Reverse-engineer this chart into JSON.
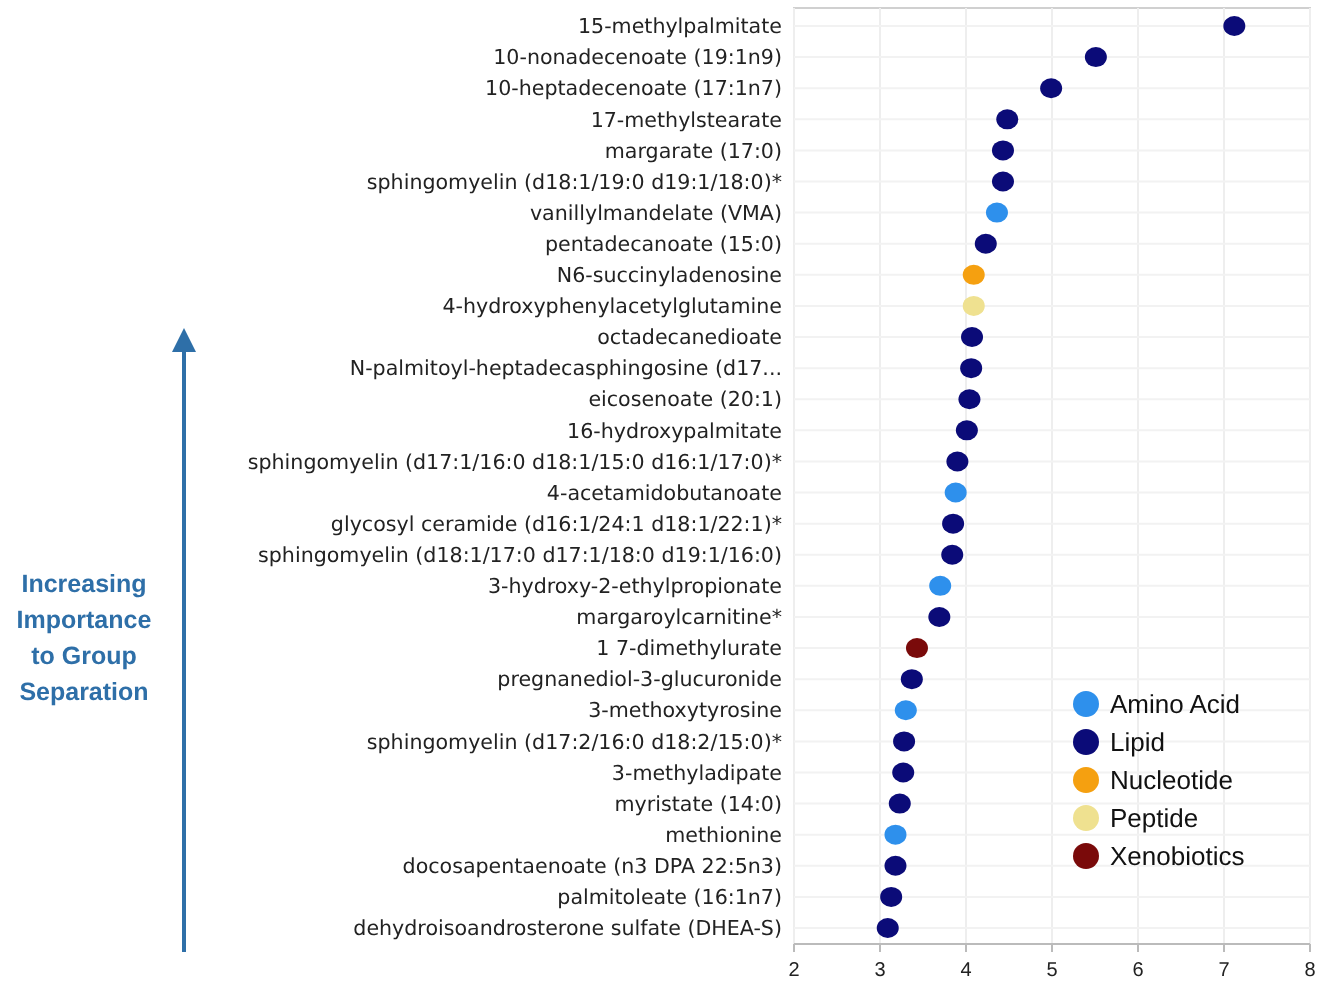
{
  "chart_data": {
    "type": "scatter",
    "orientation": "horizontal",
    "categories": [
      "15-methylpalmitate",
      "10-nonadecenoate (19:1n9)",
      "10-heptadecenoate (17:1n7)",
      "17-methylstearate",
      "margarate (17:0)",
      "sphingomyelin (d18:1/19:0 d19:1/18:0)*",
      "vanillylmandelate (VMA)",
      "pentadecanoate (15:0)",
      "N6-succinyladenosine",
      "4-hydroxyphenylacetylglutamine",
      "octadecanedioate",
      "N-palmitoyl-heptadecasphingosine (d17...",
      "eicosenoate (20:1)",
      "16-hydroxypalmitate",
      "sphingomyelin (d17:1/16:0 d18:1/15:0 d16:1/17:0)*",
      "4-acetamidobutanoate",
      "glycosyl ceramide (d16:1/24:1 d18:1/22:1)*",
      "sphingomyelin (d18:1/17:0 d17:1/18:0 d19:1/16:0)",
      "3-hydroxy-2-ethylpropionate",
      "margaroylcarnitine*",
      "1 7-dimethylurate",
      "pregnanediol-3-glucuronide",
      "3-methoxytyrosine",
      "sphingomyelin (d17:2/16:0 d18:2/15:0)*",
      "3-methyladipate",
      "myristate (14:0)",
      "methionine",
      "docosapentaenoate (n3 DPA 22:5n3)",
      "palmitoleate (16:1n7)",
      "dehydroisoandrosterone sulfate (DHEA-S)"
    ],
    "series": [
      {
        "name": "Amino Acid",
        "color": "#2e90ec",
        "values": [
          null,
          null,
          null,
          null,
          null,
          null,
          4.36,
          null,
          null,
          null,
          null,
          null,
          null,
          null,
          null,
          3.88,
          null,
          null,
          3.7,
          null,
          null,
          null,
          3.3,
          null,
          null,
          null,
          3.18,
          null,
          null,
          null
        ]
      },
      {
        "name": "Lipid",
        "color": "#0b0b78",
        "values": [
          7.12,
          5.51,
          4.99,
          4.48,
          4.43,
          4.43,
          null,
          4.23,
          null,
          null,
          4.07,
          4.06,
          4.04,
          4.01,
          3.9,
          null,
          3.85,
          3.84,
          null,
          3.69,
          null,
          3.37,
          null,
          3.28,
          3.27,
          3.23,
          null,
          3.18,
          3.13,
          3.09
        ]
      },
      {
        "name": "Nucleotide",
        "color": "#f5a010",
        "values": [
          null,
          null,
          null,
          null,
          null,
          null,
          null,
          null,
          4.09,
          null,
          null,
          null,
          null,
          null,
          null,
          null,
          null,
          null,
          null,
          null,
          null,
          null,
          null,
          null,
          null,
          null,
          null,
          null,
          null,
          null
        ]
      },
      {
        "name": "Peptide",
        "color": "#efe190",
        "values": [
          null,
          null,
          null,
          null,
          null,
          null,
          null,
          null,
          null,
          4.09,
          null,
          null,
          null,
          null,
          null,
          null,
          null,
          null,
          null,
          null,
          null,
          null,
          null,
          null,
          null,
          null,
          null,
          null,
          null,
          null
        ]
      },
      {
        "name": "Xenobiotics",
        "color": "#7a0a0a",
        "values": [
          null,
          null,
          null,
          null,
          null,
          null,
          null,
          null,
          null,
          null,
          null,
          null,
          null,
          null,
          null,
          null,
          null,
          null,
          null,
          null,
          3.43,
          null,
          null,
          null,
          null,
          null,
          null,
          null,
          null,
          null
        ]
      }
    ],
    "xlim": [
      2,
      8
    ],
    "xticks": [
      2,
      3,
      4,
      5,
      6,
      7,
      8
    ],
    "grid": true,
    "legend": "bottom right",
    "marker": "circle",
    "annotations": [
      "Increasing Importance to Group Separation"
    ]
  }
}
